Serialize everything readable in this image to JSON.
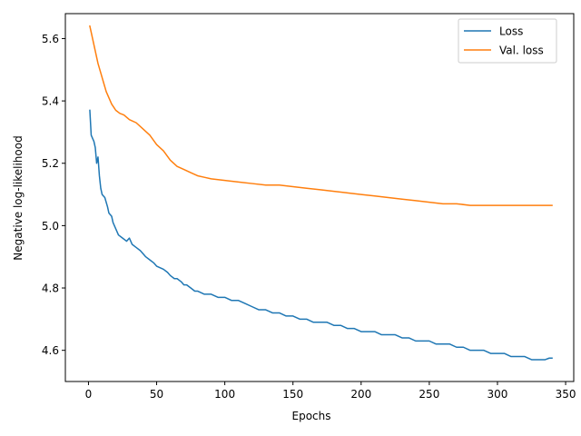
{
  "chart_data": {
    "type": "line",
    "xlabel": "Epochs",
    "ylabel": "Negative log-likelihood",
    "xlim": [
      -16.95,
      355.95
    ],
    "ylim": [
      4.5,
      5.68
    ],
    "xticks": [
      0,
      50,
      100,
      150,
      200,
      250,
      300,
      350
    ],
    "yticks": [
      4.6,
      4.8,
      5.0,
      5.2,
      5.4,
      5.6
    ],
    "ytick_labels": [
      "4.6",
      "4.8",
      "5.0",
      "5.2",
      "5.4",
      "5.6"
    ],
    "grid": false,
    "legend": "top-right",
    "series": [
      {
        "name": "Loss",
        "color": "#1f77b4",
        "points": [
          [
            1,
            5.37
          ],
          [
            2,
            5.29
          ],
          [
            3,
            5.28
          ],
          [
            4,
            5.27
          ],
          [
            5,
            5.25
          ],
          [
            6,
            5.2
          ],
          [
            7,
            5.22
          ],
          [
            8,
            5.16
          ],
          [
            9,
            5.12
          ],
          [
            10,
            5.1
          ],
          [
            12,
            5.09
          ],
          [
            14,
            5.06
          ],
          [
            15,
            5.04
          ],
          [
            17,
            5.03
          ],
          [
            18,
            5.01
          ],
          [
            20,
            4.99
          ],
          [
            22,
            4.97
          ],
          [
            25,
            4.96
          ],
          [
            28,
            4.95
          ],
          [
            30,
            4.96
          ],
          [
            32,
            4.94
          ],
          [
            35,
            4.93
          ],
          [
            38,
            4.92
          ],
          [
            40,
            4.91
          ],
          [
            42,
            4.9
          ],
          [
            45,
            4.89
          ],
          [
            48,
            4.88
          ],
          [
            50,
            4.87
          ],
          [
            55,
            4.86
          ],
          [
            58,
            4.85
          ],
          [
            60,
            4.84
          ],
          [
            63,
            4.83
          ],
          [
            65,
            4.83
          ],
          [
            68,
            4.82
          ],
          [
            70,
            4.81
          ],
          [
            72,
            4.81
          ],
          [
            75,
            4.8
          ],
          [
            78,
            4.79
          ],
          [
            80,
            4.79
          ],
          [
            85,
            4.78
          ],
          [
            90,
            4.78
          ],
          [
            95,
            4.77
          ],
          [
            100,
            4.77
          ],
          [
            105,
            4.76
          ],
          [
            110,
            4.76
          ],
          [
            115,
            4.75
          ],
          [
            120,
            4.74
          ],
          [
            125,
            4.73
          ],
          [
            130,
            4.73
          ],
          [
            135,
            4.72
          ],
          [
            140,
            4.72
          ],
          [
            145,
            4.71
          ],
          [
            150,
            4.71
          ],
          [
            155,
            4.7
          ],
          [
            160,
            4.7
          ],
          [
            165,
            4.69
          ],
          [
            170,
            4.69
          ],
          [
            175,
            4.69
          ],
          [
            180,
            4.68
          ],
          [
            185,
            4.68
          ],
          [
            190,
            4.67
          ],
          [
            195,
            4.67
          ],
          [
            200,
            4.66
          ],
          [
            205,
            4.66
          ],
          [
            210,
            4.66
          ],
          [
            215,
            4.65
          ],
          [
            220,
            4.65
          ],
          [
            225,
            4.65
          ],
          [
            230,
            4.64
          ],
          [
            235,
            4.64
          ],
          [
            240,
            4.63
          ],
          [
            245,
            4.63
          ],
          [
            250,
            4.63
          ],
          [
            255,
            4.62
          ],
          [
            260,
            4.62
          ],
          [
            265,
            4.62
          ],
          [
            270,
            4.61
          ],
          [
            275,
            4.61
          ],
          [
            280,
            4.6
          ],
          [
            285,
            4.6
          ],
          [
            290,
            4.6
          ],
          [
            295,
            4.59
          ],
          [
            300,
            4.59
          ],
          [
            305,
            4.59
          ],
          [
            310,
            4.58
          ],
          [
            315,
            4.58
          ],
          [
            320,
            4.58
          ],
          [
            325,
            4.57
          ],
          [
            330,
            4.57
          ],
          [
            335,
            4.57
          ],
          [
            338,
            4.575
          ],
          [
            340,
            4.575
          ]
        ]
      },
      {
        "name": "Val. loss",
        "color": "#ff7f0e",
        "points": [
          [
            1,
            5.64
          ],
          [
            2,
            5.62
          ],
          [
            3,
            5.6
          ],
          [
            5,
            5.56
          ],
          [
            7,
            5.52
          ],
          [
            9,
            5.49
          ],
          [
            11,
            5.46
          ],
          [
            13,
            5.43
          ],
          [
            15,
            5.41
          ],
          [
            17,
            5.39
          ],
          [
            20,
            5.37
          ],
          [
            23,
            5.36
          ],
          [
            26,
            5.355
          ],
          [
            30,
            5.34
          ],
          [
            35,
            5.33
          ],
          [
            40,
            5.31
          ],
          [
            45,
            5.29
          ],
          [
            50,
            5.26
          ],
          [
            55,
            5.24
          ],
          [
            60,
            5.21
          ],
          [
            65,
            5.19
          ],
          [
            70,
            5.18
          ],
          [
            75,
            5.17
          ],
          [
            80,
            5.16
          ],
          [
            85,
            5.155
          ],
          [
            90,
            5.15
          ],
          [
            100,
            5.145
          ],
          [
            110,
            5.14
          ],
          [
            120,
            5.135
          ],
          [
            130,
            5.13
          ],
          [
            140,
            5.13
          ],
          [
            150,
            5.125
          ],
          [
            160,
            5.12
          ],
          [
            170,
            5.115
          ],
          [
            180,
            5.11
          ],
          [
            190,
            5.105
          ],
          [
            200,
            5.1
          ],
          [
            210,
            5.095
          ],
          [
            220,
            5.09
          ],
          [
            230,
            5.085
          ],
          [
            240,
            5.08
          ],
          [
            250,
            5.075
          ],
          [
            260,
            5.07
          ],
          [
            270,
            5.07
          ],
          [
            280,
            5.065
          ],
          [
            290,
            5.065
          ],
          [
            300,
            5.065
          ],
          [
            310,
            5.065
          ],
          [
            320,
            5.065
          ],
          [
            330,
            5.065
          ],
          [
            340,
            5.065
          ]
        ]
      }
    ]
  }
}
